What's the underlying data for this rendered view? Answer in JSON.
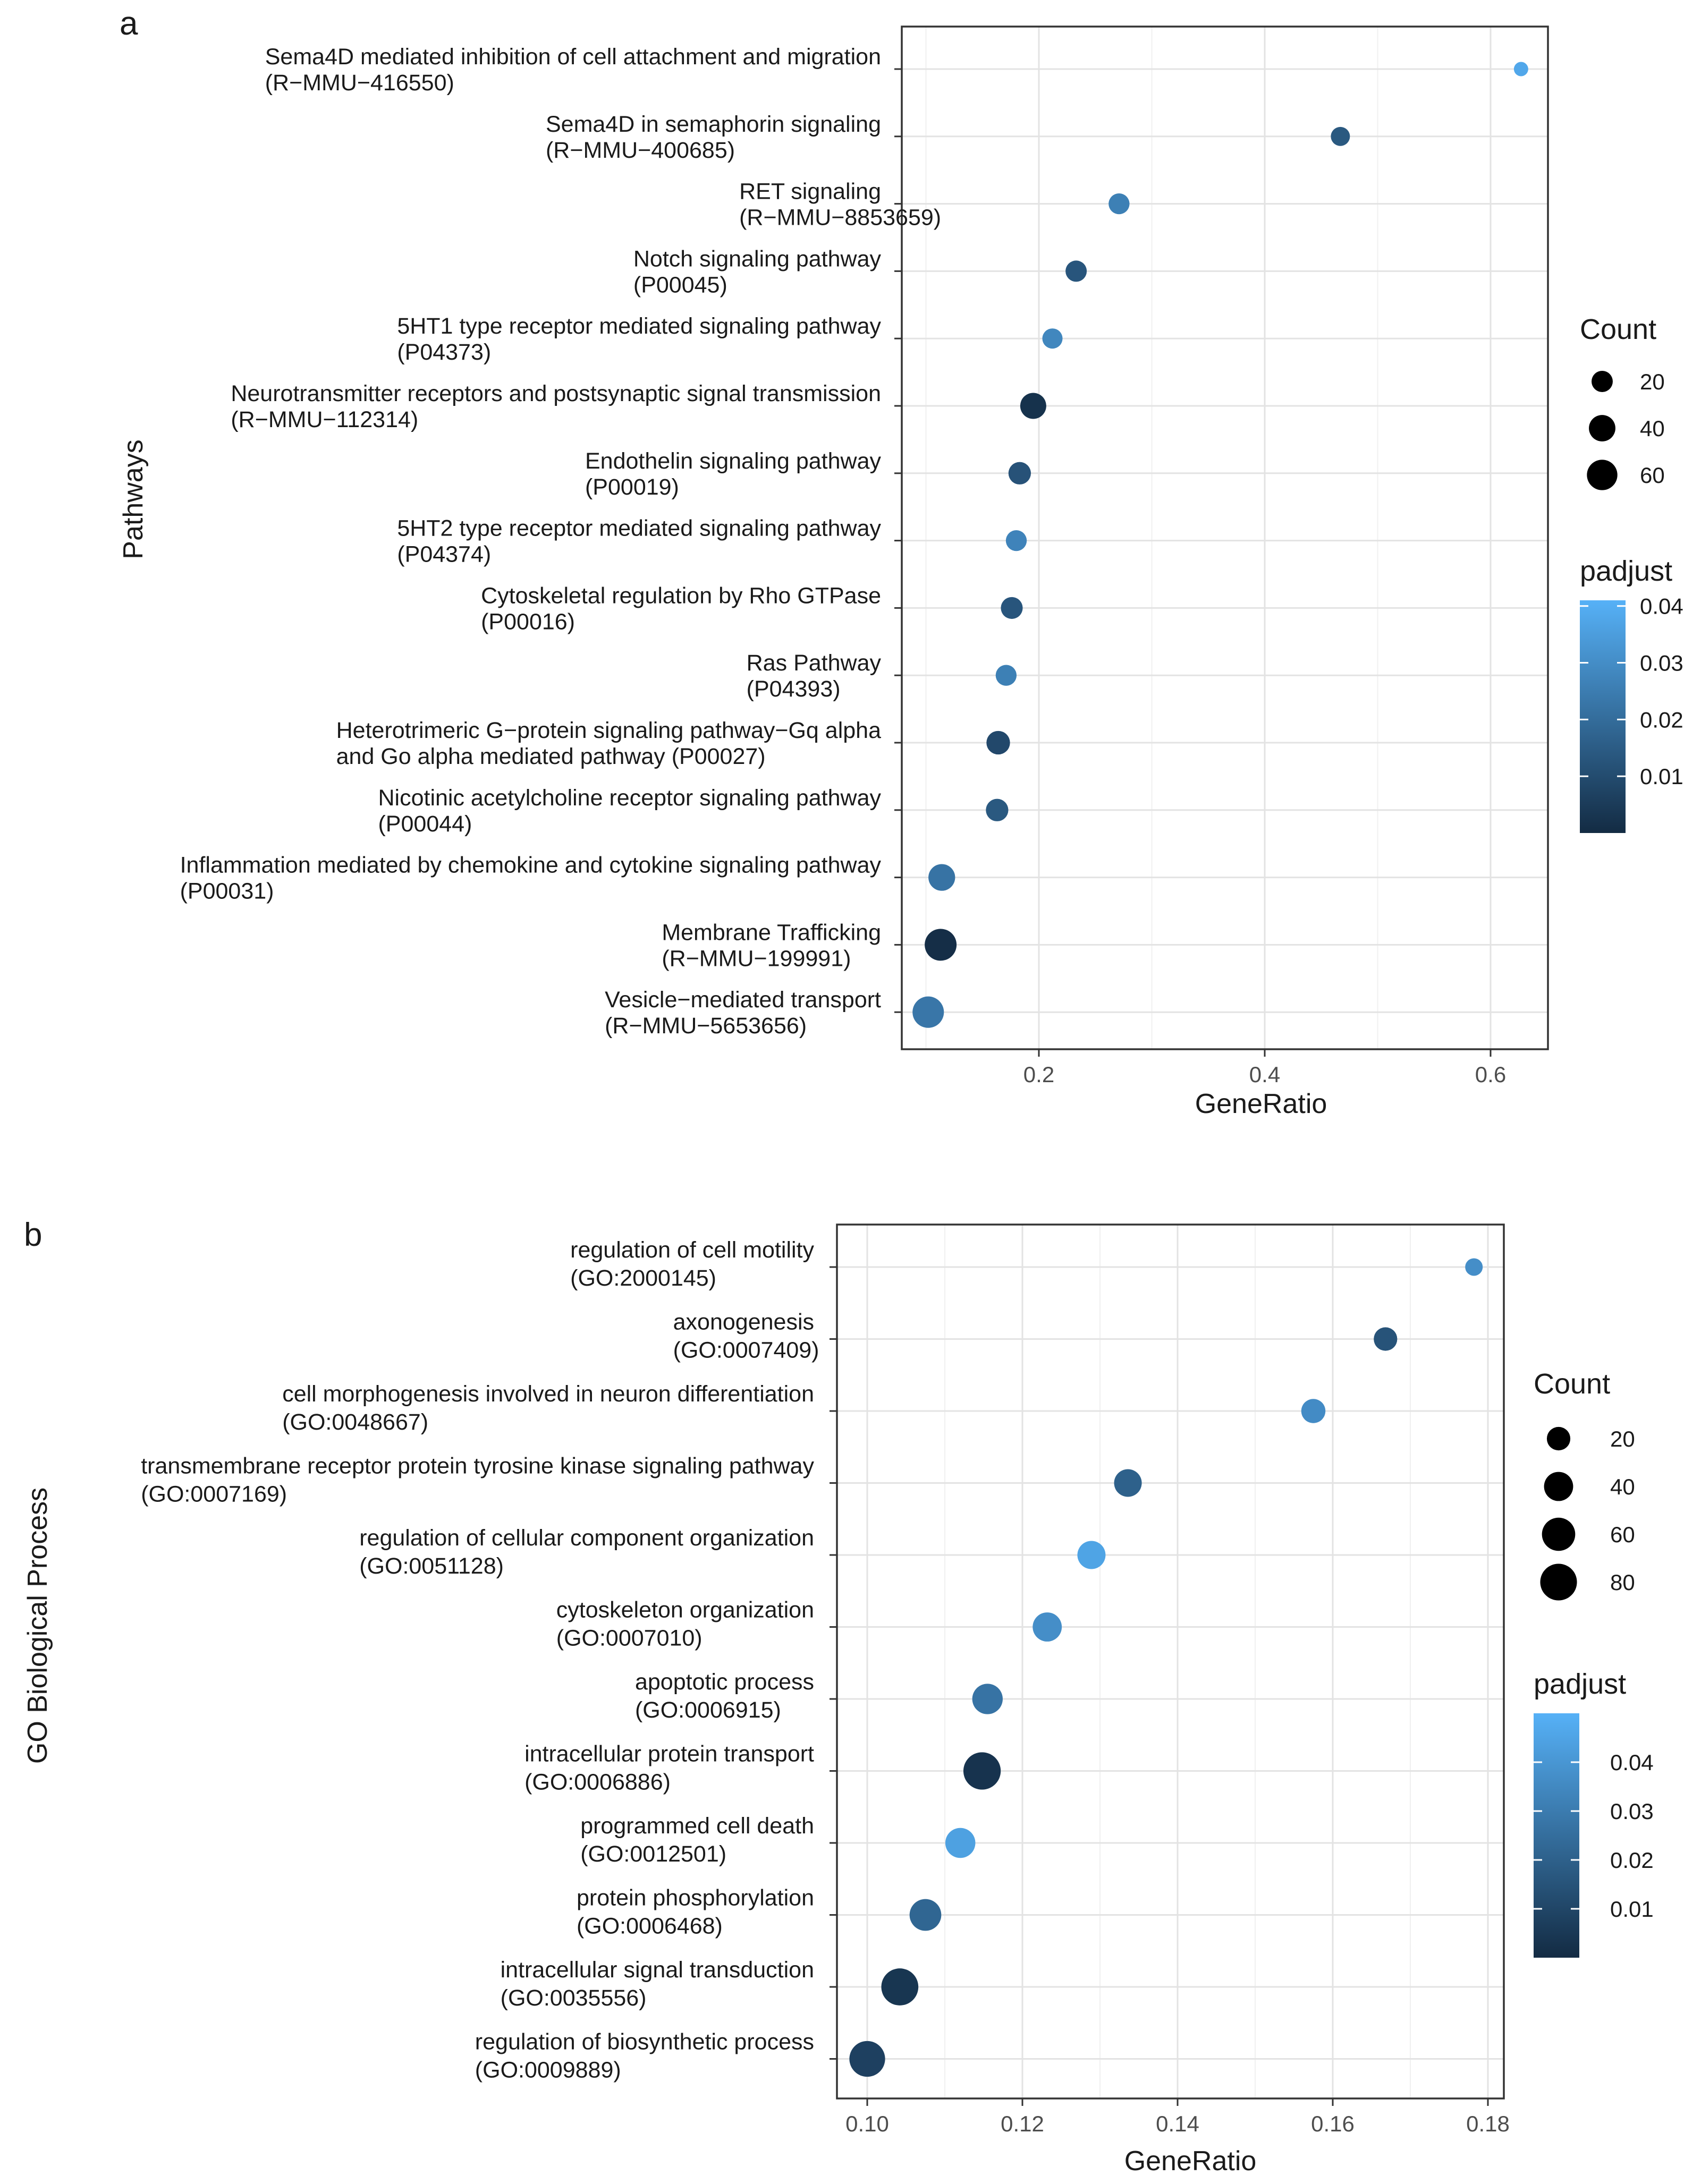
{
  "chart_data": [
    {
      "panel_label": "a",
      "type": "scatter",
      "xlabel": "GeneRatio",
      "ylabel": "Pathways",
      "xlim": [
        0.09,
        0.65
      ],
      "x_ticks": [
        {
          "value": 0.2,
          "label": "0.2"
        },
        {
          "value": 0.4,
          "label": "0.4"
        },
        {
          "value": 0.6,
          "label": "0.6"
        }
      ],
      "grid": true,
      "legend_count": {
        "title": "Count",
        "entries": [
          {
            "value": 20,
            "label": "20"
          },
          {
            "value": 40,
            "label": "40"
          },
          {
            "value": 60,
            "label": "60"
          }
        ]
      },
      "legend_padjust": {
        "title": "padjust",
        "min": 0.0,
        "max": 0.041,
        "ticks": [
          {
            "value": 0.04,
            "label": "0.04"
          },
          {
            "value": 0.03,
            "label": "0.03"
          },
          {
            "value": 0.02,
            "label": "0.02"
          },
          {
            "value": 0.01,
            "label": "0.01"
          }
        ]
      },
      "size_range": [
        2,
        68
      ],
      "color_range": [
        0.0,
        0.041
      ],
      "points": [
        {
          "lines": [
            "Sema4D mediated inhibition of cell attachment and migration",
            "(R−MMU−416550)"
          ],
          "x": 0.627,
          "count": 5,
          "padjust": 0.038
        },
        {
          "lines": [
            "Sema4D in semaphorin signaling",
            "(R−MMU−400685)"
          ],
          "x": 0.467,
          "count": 14,
          "padjust": 0.014
        },
        {
          "lines": [
            "RET signaling",
            "(R−MMU−8853659)"
          ],
          "x": 0.271,
          "count": 19,
          "padjust": 0.026
        },
        {
          "lines": [
            "Notch signaling pathway",
            "(P00045)"
          ],
          "x": 0.233,
          "count": 20,
          "padjust": 0.013
        },
        {
          "lines": [
            "5HT1 type receptor mediated signaling pathway",
            "(P04373)"
          ],
          "x": 0.212,
          "count": 17,
          "padjust": 0.028
        },
        {
          "lines": [
            "Neurotransmitter receptors and postsynaptic signal transmission",
            "(R−MMU−112314)"
          ],
          "x": 0.195,
          "count": 38,
          "padjust": 0.002
        },
        {
          "lines": [
            "Endothelin signaling pathway",
            "(P00019)"
          ],
          "x": 0.183,
          "count": 24,
          "padjust": 0.012
        },
        {
          "lines": [
            "5HT2 type receptor mediated signaling pathway",
            "(P04374)"
          ],
          "x": 0.18,
          "count": 19,
          "padjust": 0.027
        },
        {
          "lines": [
            "Cytoskeletal regulation by Rho GTPase",
            "(P00016)"
          ],
          "x": 0.176,
          "count": 22,
          "padjust": 0.013
        },
        {
          "lines": [
            "Ras Pathway",
            "(P04393)"
          ],
          "x": 0.171,
          "count": 19,
          "padjust": 0.026
        },
        {
          "lines": [
            "Heterotrimeric G−protein signaling pathway−Gq alpha",
            "and Go alpha mediated pathway (P00027)"
          ],
          "x": 0.164,
          "count": 28,
          "padjust": 0.009
        },
        {
          "lines": [
            "Nicotinic acetylcholine receptor signaling pathway",
            "(P00044)"
          ],
          "x": 0.163,
          "count": 24,
          "padjust": 0.014
        },
        {
          "lines": [
            "Inflammation mediated by chemokine and cytokine signaling pathway",
            "(P00031)"
          ],
          "x": 0.114,
          "count": 41,
          "padjust": 0.022
        },
        {
          "lines": [
            "Membrane Trafficking",
            "(R−MMU−199991)"
          ],
          "x": 0.113,
          "count": 68,
          "padjust": 0.001
        },
        {
          "lines": [
            "Vesicle−mediated transport",
            "(R−MMU−5653656)"
          ],
          "x": 0.102,
          "count": 65,
          "padjust": 0.023
        }
      ]
    },
    {
      "panel_label": "b",
      "type": "scatter",
      "xlabel": "GeneRatio",
      "ylabel": "GO Biological Process",
      "xlim": [
        0.096,
        0.1815
      ],
      "x_ticks": [
        {
          "value": 0.1,
          "label": "0.10"
        },
        {
          "value": 0.12,
          "label": "0.12"
        },
        {
          "value": 0.14,
          "label": "0.14"
        },
        {
          "value": 0.16,
          "label": "0.16"
        },
        {
          "value": 0.18,
          "label": "0.18"
        }
      ],
      "grid": true,
      "legend_count": {
        "title": "Count",
        "entries": [
          {
            "value": 20,
            "label": "20"
          },
          {
            "value": 40,
            "label": "40"
          },
          {
            "value": 60,
            "label": "60"
          },
          {
            "value": 80,
            "label": "80"
          }
        ]
      },
      "legend_padjust": {
        "title": "padjust",
        "min": 0.0,
        "max": 0.05,
        "ticks": [
          {
            "value": 0.04,
            "label": "0.04"
          },
          {
            "value": 0.03,
            "label": "0.03"
          },
          {
            "value": 0.02,
            "label": "0.02"
          },
          {
            "value": 0.01,
            "label": "0.01"
          }
        ]
      },
      "size_range": [
        5,
        90
      ],
      "color_range": [
        0.0,
        0.05
      ],
      "points": [
        {
          "lines": [
            "regulation of cell motility",
            "(GO:2000145)"
          ],
          "x": 0.1782,
          "count": 8,
          "padjust": 0.037
        },
        {
          "lines": [
            "axonogenesis",
            "(GO:0007409)"
          ],
          "x": 0.1668,
          "count": 20,
          "padjust": 0.015
        },
        {
          "lines": [
            "cell morphogenesis involved in neuron differentiation",
            "(GO:0048667)"
          ],
          "x": 0.1575,
          "count": 22,
          "padjust": 0.036
        },
        {
          "lines": [
            "transmembrane receptor protein tyrosine kinase signaling pathway",
            "(GO:0007169)"
          ],
          "x": 0.1336,
          "count": 34,
          "padjust": 0.02
        },
        {
          "lines": [
            "regulation of cellular component organization",
            "(GO:0051128)"
          ],
          "x": 0.1289,
          "count": 36,
          "padjust": 0.045
        },
        {
          "lines": [
            "cytoskeleton organization",
            "(GO:0007010)"
          ],
          "x": 0.1232,
          "count": 40,
          "padjust": 0.037
        },
        {
          "lines": [
            "apoptotic process",
            "(GO:0006915)"
          ],
          "x": 0.1155,
          "count": 46,
          "padjust": 0.027
        },
        {
          "lines": [
            "intracellular protein transport",
            "(GO:0006886)"
          ],
          "x": 0.1148,
          "count": 84,
          "padjust": 0.003
        },
        {
          "lines": [
            "programmed cell death",
            "(GO:0012501)"
          ],
          "x": 0.112,
          "count": 44,
          "padjust": 0.044
        },
        {
          "lines": [
            "protein phosphorylation",
            "(GO:0006468)"
          ],
          "x": 0.1075,
          "count": 52,
          "padjust": 0.022
        },
        {
          "lines": [
            "intracellular signal transduction",
            "(GO:0035556)"
          ],
          "x": 0.1042,
          "count": 82,
          "padjust": 0.004
        },
        {
          "lines": [
            "regulation of biosynthetic process",
            "(GO:0009889)"
          ],
          "x": 0.1,
          "count": 74,
          "padjust": 0.008
        }
      ]
    }
  ]
}
